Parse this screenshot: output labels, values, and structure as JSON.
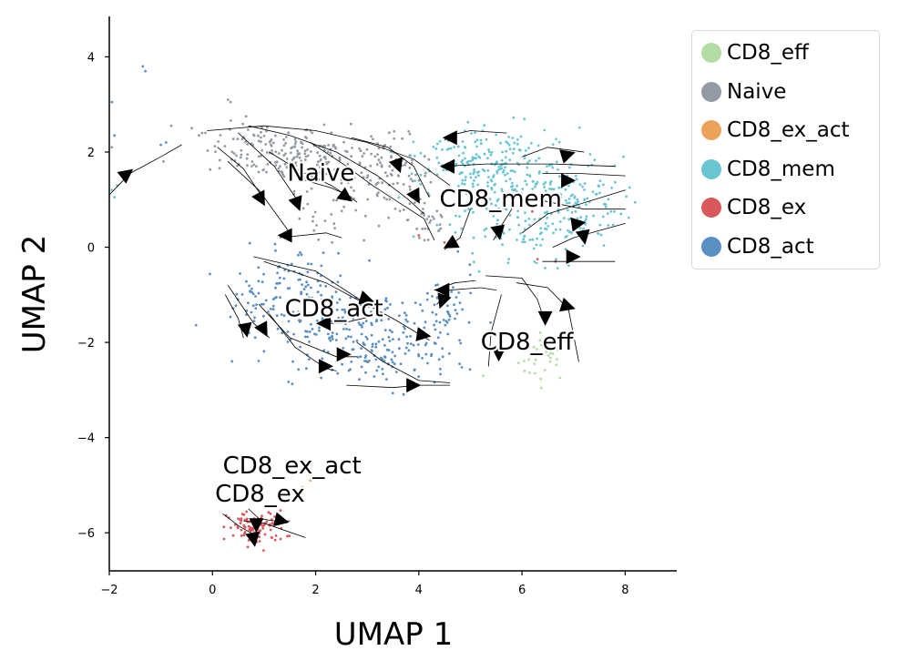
{
  "chart_data": {
    "type": "scatter",
    "title": "",
    "xlabel": "UMAP 1",
    "ylabel": "UMAP 2",
    "xlim": [
      -2,
      9
    ],
    "ylim": [
      -6.8,
      4.85
    ],
    "xticks": [
      -2,
      0,
      2,
      4,
      6,
      8
    ],
    "yticks": [
      -6,
      -4,
      -2,
      0,
      2,
      4
    ],
    "grid": false,
    "legend_position": "outside-top-right",
    "series": [
      {
        "name": "CD8_eff",
        "color": "#b2dca4",
        "clusters": [
          {
            "cx": 6.45,
            "cy": -2.3,
            "sx": 0.25,
            "sy": 0.25,
            "n": 35
          }
        ],
        "points": [
          [
            5.25,
            -2.7
          ],
          [
            6.05,
            -2.6
          ]
        ]
      },
      {
        "name": "Naive",
        "color": "#939aa4",
        "clusters": [
          {
            "cx": 1.0,
            "cy": 2.05,
            "sx": 0.55,
            "sy": 0.28,
            "n": 110
          },
          {
            "cx": 2.2,
            "cy": 1.85,
            "sx": 0.6,
            "sy": 0.32,
            "n": 110
          },
          {
            "cx": 3.4,
            "cy": 1.5,
            "sx": 0.45,
            "sy": 0.4,
            "n": 90
          },
          {
            "cx": 4.2,
            "cy": 0.6,
            "sx": 0.2,
            "sy": 0.4,
            "n": 30
          },
          {
            "cx": 2.0,
            "cy": 0.6,
            "sx": 0.35,
            "sy": 0.3,
            "n": 20
          }
        ],
        "points": [
          [
            0.3,
            3.1
          ],
          [
            0.35,
            3.05
          ],
          [
            -0.8,
            2.55
          ],
          [
            -0.2,
            2.4
          ],
          [
            -0.4,
            2.5
          ],
          [
            -1.95,
            2.1
          ],
          [
            -0.95,
            1.8
          ]
        ]
      },
      {
        "name": "CD8_ex_act",
        "color": "#eba25a",
        "clusters": [],
        "points": [
          [
            1.75,
            -5.05
          ],
          [
            1.9,
            -4.9
          ]
        ]
      },
      {
        "name": "CD8_mem",
        "color": "#6ac5d2",
        "clusters": [
          {
            "cx": 5.6,
            "cy": 1.5,
            "sx": 0.75,
            "sy": 0.5,
            "n": 240
          },
          {
            "cx": 7.0,
            "cy": 0.9,
            "sx": 0.5,
            "sy": 0.45,
            "n": 130
          },
          {
            "cx": 5.8,
            "cy": 0.2,
            "sx": 0.6,
            "sy": 0.35,
            "n": 50
          },
          {
            "cx": 4.6,
            "cy": 1.8,
            "sx": 0.35,
            "sy": 0.3,
            "n": 40
          }
        ],
        "points": [
          [
            -1.95,
            1.2
          ],
          [
            -1.9,
            1.05
          ],
          [
            -1.85,
            1.3
          ]
        ]
      },
      {
        "name": "CD8_ex",
        "color": "#d9585b",
        "clusters": [
          {
            "cx": 0.85,
            "cy": -5.9,
            "sx": 0.28,
            "sy": 0.18,
            "n": 90
          }
        ],
        "points": [
          [
            6.3,
            -0.25
          ],
          [
            6.65,
            -0.3
          ],
          [
            4.0,
            0.25
          ],
          [
            4.5,
            0.1
          ],
          [
            6.2,
            0.75
          ]
        ]
      },
      {
        "name": "CD8_act",
        "color": "#5a8fc3",
        "clusters": [
          {
            "cx": 1.6,
            "cy": -0.7,
            "sx": 0.55,
            "sy": 0.35,
            "n": 70
          },
          {
            "cx": 2.5,
            "cy": -1.7,
            "sx": 0.75,
            "sy": 0.4,
            "n": 170
          },
          {
            "cx": 3.5,
            "cy": -2.35,
            "sx": 0.55,
            "sy": 0.3,
            "n": 80
          },
          {
            "cx": 4.5,
            "cy": -1.4,
            "sx": 0.3,
            "sy": 0.45,
            "n": 60
          },
          {
            "cx": 0.8,
            "cy": -1.2,
            "sx": 0.3,
            "sy": 0.3,
            "n": 30
          }
        ],
        "points": [
          [
            -1.35,
            3.8
          ],
          [
            -1.3,
            3.7
          ],
          [
            -1.0,
            2.15
          ],
          [
            -0.9,
            2.2
          ],
          [
            -1.95,
            3.05
          ],
          [
            -1.9,
            2.35
          ]
        ]
      }
    ],
    "cluster_labels": [
      {
        "text": "Naive",
        "x": 1.45,
        "y": 1.4
      },
      {
        "text": "CD8_mem",
        "x": 4.4,
        "y": 0.85
      },
      {
        "text": "CD8_act",
        "x": 1.4,
        "y": -1.45
      },
      {
        "text": "CD8_eff",
        "x": 5.2,
        "y": -2.15
      },
      {
        "text": "CD8_ex_act",
        "x": 0.2,
        "y": -4.75
      },
      {
        "text": "CD8_ex",
        "x": 0.05,
        "y": -5.35
      }
    ],
    "streamlines": [
      [
        [
          -0.1,
          2.45
        ],
        [
          1.0,
          2.55
        ],
        [
          2.0,
          2.45
        ],
        [
          3.0,
          2.2
        ],
        [
          3.9,
          1.85
        ],
        [
          4.6,
          1.3
        ]
      ],
      [
        [
          0.7,
          2.55
        ],
        [
          1.5,
          2.35
        ],
        [
          2.4,
          2.0
        ],
        [
          3.2,
          1.5
        ],
        [
          3.8,
          1.0
        ],
        [
          4.1,
          0.7
        ]
      ],
      [
        [
          0.1,
          2.1
        ],
        [
          0.6,
          1.65
        ],
        [
          1.0,
          1.0
        ]
      ],
      [
        [
          0.5,
          2.4
        ],
        [
          1.2,
          1.7
        ],
        [
          1.7,
          0.9
        ]
      ],
      [
        [
          1.1,
          2.0
        ],
        [
          1.7,
          1.6
        ],
        [
          2.3,
          1.3
        ],
        [
          2.8,
          0.95
        ]
      ],
      [
        [
          1.9,
          2.2
        ],
        [
          2.6,
          1.7
        ],
        [
          3.1,
          1.3
        ],
        [
          3.6,
          0.95
        ],
        [
          4.1,
          0.6
        ],
        [
          4.3,
          0.15
        ]
      ],
      [
        [
          1.8,
          1.4
        ],
        [
          2.3,
          1.25
        ],
        [
          2.7,
          1.05
        ]
      ],
      [
        [
          0.3,
          1.8
        ],
        [
          0.9,
          1.2
        ],
        [
          1.5,
          0.3
        ]
      ],
      [
        [
          1.3,
          0.2
        ],
        [
          2.2,
          0.3
        ],
        [
          2.5,
          0.2
        ]
      ],
      [
        [
          2.7,
          2.3
        ],
        [
          3.4,
          2.1
        ],
        [
          3.9,
          1.7
        ],
        [
          4.2,
          1.05
        ]
      ],
      [
        [
          5.7,
          2.4
        ],
        [
          5.0,
          2.45
        ],
        [
          4.6,
          2.35
        ],
        [
          4.5,
          2.25
        ]
      ],
      [
        [
          7.8,
          1.7
        ],
        [
          6.6,
          1.75
        ],
        [
          5.3,
          1.75
        ],
        [
          4.5,
          1.7
        ]
      ],
      [
        [
          6.4,
          1.55
        ],
        [
          7.1,
          1.55
        ],
        [
          8.0,
          1.5
        ]
      ],
      [
        [
          6.3,
          1.0
        ],
        [
          7.2,
          0.8
        ],
        [
          8.0,
          0.8
        ]
      ],
      [
        [
          6.0,
          0.3
        ],
        [
          6.5,
          0.7
        ],
        [
          7.4,
          1.0
        ],
        [
          8.0,
          1.2
        ]
      ],
      [
        [
          6.6,
          0.0
        ],
        [
          7.0,
          0.2
        ],
        [
          8.0,
          0.5
        ]
      ],
      [
        [
          6.4,
          -0.3
        ],
        [
          6.9,
          -0.3
        ],
        [
          7.8,
          -0.3
        ]
      ],
      [
        [
          5.0,
          0.8
        ],
        [
          4.8,
          0.2
        ],
        [
          4.5,
          -0.05
        ]
      ],
      [
        [
          5.8,
          0.8
        ],
        [
          5.6,
          0.45
        ],
        [
          5.45,
          0.15
        ]
      ],
      [
        [
          6.0,
          1.9
        ],
        [
          6.5,
          2.1
        ],
        [
          7.2,
          2.0
        ]
      ],
      [
        [
          5.5,
          -0.9
        ],
        [
          5.2,
          -0.85
        ],
        [
          4.6,
          -0.9
        ],
        [
          4.35,
          -1.2
        ]
      ],
      [
        [
          5.1,
          -0.7
        ],
        [
          4.7,
          -0.75
        ],
        [
          4.3,
          -0.9
        ]
      ],
      [
        [
          5.3,
          -0.6
        ],
        [
          6.0,
          -0.65
        ],
        [
          6.3,
          -1.1
        ],
        [
          6.45,
          -1.6
        ]
      ],
      [
        [
          5.9,
          -0.75
        ],
        [
          6.5,
          -0.85
        ],
        [
          6.9,
          -1.3
        ],
        [
          7.1,
          -2.4
        ]
      ],
      [
        [
          5.6,
          -1.0
        ],
        [
          5.4,
          -1.8
        ],
        [
          5.35,
          -2.5
        ]
      ],
      [
        [
          0.8,
          -0.2
        ],
        [
          2.0,
          -0.5
        ],
        [
          3.0,
          -1.2
        ]
      ],
      [
        [
          1.0,
          -0.3
        ],
        [
          2.2,
          -0.75
        ],
        [
          3.5,
          -1.5
        ],
        [
          4.2,
          -1.95
        ]
      ],
      [
        [
          0.3,
          -0.8
        ],
        [
          0.8,
          -1.6
        ],
        [
          1.1,
          -1.9
        ]
      ],
      [
        [
          0.25,
          -1.0
        ],
        [
          0.5,
          -1.5
        ],
        [
          0.6,
          -1.9
        ]
      ],
      [
        [
          0.9,
          -1.2
        ],
        [
          1.5,
          -1.9
        ],
        [
          2.4,
          -2.3
        ],
        [
          2.8,
          -2.3
        ]
      ],
      [
        [
          1.1,
          -1.4
        ],
        [
          1.6,
          -2.1
        ],
        [
          2.2,
          -2.55
        ],
        [
          2.4,
          -2.6
        ]
      ],
      [
        [
          2.8,
          -2.0
        ],
        [
          3.3,
          -2.4
        ],
        [
          4.0,
          -2.8
        ],
        [
          4.6,
          -2.85
        ]
      ],
      [
        [
          2.6,
          -2.9
        ],
        [
          3.5,
          -2.95
        ],
        [
          4.0,
          -2.9
        ],
        [
          4.6,
          -2.9
        ]
      ],
      [
        [
          3.1,
          -1.45
        ],
        [
          2.5,
          -1.6
        ],
        [
          2.15,
          -1.6
        ]
      ],
      [
        [
          0.2,
          -5.6
        ],
        [
          0.5,
          -5.85
        ],
        [
          0.9,
          -6.1
        ]
      ],
      [
        [
          0.6,
          -5.75
        ],
        [
          1.0,
          -5.8
        ],
        [
          1.8,
          -6.1
        ]
      ],
      [
        [
          0.7,
          -5.5
        ],
        [
          0.9,
          -5.7
        ],
        [
          1.2,
          -5.75
        ],
        [
          1.5,
          -5.75
        ]
      ],
      [
        [
          -2.0,
          1.1
        ],
        [
          -1.6,
          1.55
        ],
        [
          -1.0,
          1.9
        ],
        [
          -0.6,
          2.15
        ]
      ]
    ],
    "arrows": [
      {
        "x": 0.95,
        "y": 1.0,
        "dx": 0.15,
        "dy": -0.3
      },
      {
        "x": 1.65,
        "y": 0.9,
        "dx": 0.1,
        "dy": -0.3
      },
      {
        "x": 2.6,
        "y": 1.05,
        "dx": 0.25,
        "dy": -0.2
      },
      {
        "x": 3.6,
        "y": 1.7,
        "dx": 0.1,
        "dy": -0.3
      },
      {
        "x": 3.95,
        "y": 1.05,
        "dx": 0.15,
        "dy": -0.3
      },
      {
        "x": 1.4,
        "y": 0.25,
        "dx": -0.3,
        "dy": 0.0
      },
      {
        "x": 4.6,
        "y": 2.3,
        "dx": -0.3,
        "dy": 0.0
      },
      {
        "x": 4.55,
        "y": 1.7,
        "dx": -0.3,
        "dy": 0.0
      },
      {
        "x": 6.9,
        "y": 1.95,
        "dx": 0.3,
        "dy": 0.1
      },
      {
        "x": 6.9,
        "y": 1.4,
        "dx": 0.3,
        "dy": 0.0
      },
      {
        "x": 7.1,
        "y": 0.5,
        "dx": 0.3,
        "dy": 0.05
      },
      {
        "x": 7.2,
        "y": 0.2,
        "dx": 0.05,
        "dy": -0.3
      },
      {
        "x": 7.0,
        "y": -0.2,
        "dx": 0.3,
        "dy": 0.0
      },
      {
        "x": 5.55,
        "y": 0.3,
        "dx": 0.05,
        "dy": -0.3
      },
      {
        "x": 4.6,
        "y": 0.05,
        "dx": -0.25,
        "dy": -0.15
      },
      {
        "x": 4.45,
        "y": -0.9,
        "dx": -0.3,
        "dy": 0.0
      },
      {
        "x": 4.45,
        "y": -1.15,
        "dx": -0.1,
        "dy": -0.3
      },
      {
        "x": 6.9,
        "y": -1.25,
        "dx": 0.3,
        "dy": -0.1
      },
      {
        "x": 6.45,
        "y": -1.5,
        "dx": 0.0,
        "dy": -0.3
      },
      {
        "x": 5.55,
        "y": -2.25,
        "dx": 0.0,
        "dy": -0.3
      },
      {
        "x": 3.0,
        "y": -1.1,
        "dx": 0.3,
        "dy": -0.1
      },
      {
        "x": 4.1,
        "y": -1.85,
        "dx": 0.3,
        "dy": -0.05
      },
      {
        "x": 0.65,
        "y": -1.75,
        "dx": 0.05,
        "dy": -0.3
      },
      {
        "x": 1.0,
        "y": -1.75,
        "dx": 0.15,
        "dy": -0.3
      },
      {
        "x": 2.55,
        "y": -2.25,
        "dx": 0.3,
        "dy": 0.0
      },
      {
        "x": 2.2,
        "y": -2.5,
        "dx": 0.3,
        "dy": 0.0
      },
      {
        "x": 3.9,
        "y": -2.9,
        "dx": 0.3,
        "dy": 0.0
      },
      {
        "x": 2.15,
        "y": -1.6,
        "dx": -0.3,
        "dy": 0.0
      },
      {
        "x": 0.85,
        "y": -5.85,
        "dx": 0.0,
        "dy": -0.3
      },
      {
        "x": 1.35,
        "y": -5.75,
        "dx": 0.2,
        "dy": -0.05
      },
      {
        "x": 0.8,
        "y": -6.15,
        "dx": 0.05,
        "dy": -0.3
      },
      {
        "x": -1.65,
        "y": 1.55,
        "dx": 0.3,
        "dy": 0.25
      }
    ]
  }
}
